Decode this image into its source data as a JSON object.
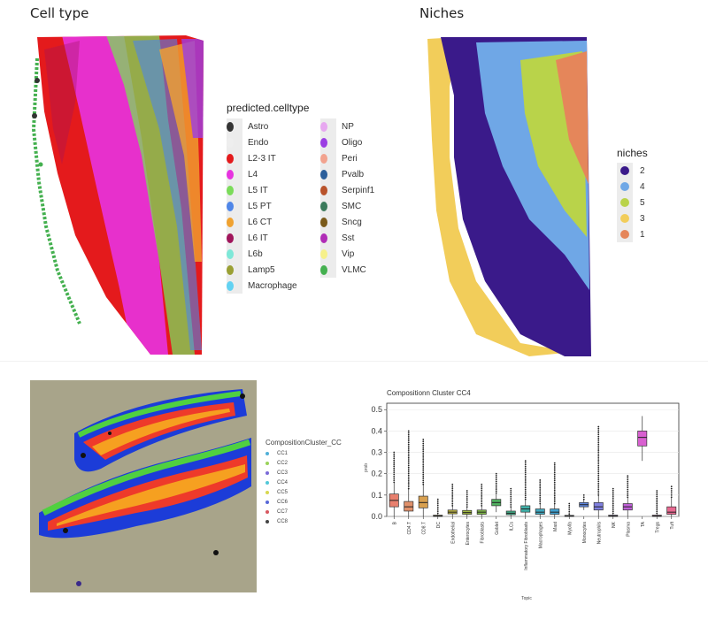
{
  "panels": {
    "cell_type": {
      "title": "Cell type"
    },
    "niches": {
      "title": "Niches"
    }
  },
  "celltype_legend": {
    "title": "predicted.celltype",
    "col1": [
      {
        "label": "Astro",
        "color": "#333333"
      },
      {
        "label": "Endo",
        "color": "#eeeeee"
      },
      {
        "label": "L2-3 IT",
        "color": "#e41a1c"
      },
      {
        "label": "L4",
        "color": "#e733e0"
      },
      {
        "label": "L5 IT",
        "color": "#7bdc5a"
      },
      {
        "label": "L5 PT",
        "color": "#4f86e8"
      },
      {
        "label": "L6 CT",
        "color": "#f0a230"
      },
      {
        "label": "L6 IT",
        "color": "#a0155b"
      },
      {
        "label": "L6b",
        "color": "#7ee8d8"
      },
      {
        "label": "Lamp5",
        "color": "#9aa034"
      },
      {
        "label": "Macrophage",
        "color": "#62d2f2"
      }
    ],
    "col2": [
      {
        "label": "NP",
        "color": "#e7a8f0"
      },
      {
        "label": "Oligo",
        "color": "#9b3ee3"
      },
      {
        "label": "Peri",
        "color": "#f2a28e"
      },
      {
        "label": "Pvalb",
        "color": "#2b5e9a"
      },
      {
        "label": "Serpinf1",
        "color": "#b8522a"
      },
      {
        "label": "SMC",
        "color": "#3b7a5b"
      },
      {
        "label": "Sncg",
        "color": "#7a5a1a"
      },
      {
        "label": "Sst",
        "color": "#b02cb6"
      },
      {
        "label": "Vip",
        "color": "#f6f08a"
      },
      {
        "label": "VLMC",
        "color": "#44b04f"
      }
    ]
  },
  "niche_legend": {
    "title": "niches",
    "items": [
      {
        "label": "2",
        "color": "#3a1a8a"
      },
      {
        "label": "4",
        "color": "#6fa7e6"
      },
      {
        "label": "5",
        "color": "#b9d34a"
      },
      {
        "label": "3",
        "color": "#f2cd5a"
      },
      {
        "label": "1",
        "color": "#e5865a"
      }
    ]
  },
  "cc_legend": {
    "title": "CompositionCluster_CC",
    "items": [
      {
        "label": "CC1",
        "color": "#50b0d8"
      },
      {
        "label": "CC2",
        "color": "#9ad35a"
      },
      {
        "label": "CC3",
        "color": "#7a6ad8"
      },
      {
        "label": "CC4",
        "color": "#52c8d8"
      },
      {
        "label": "CC5",
        "color": "#d8d850"
      },
      {
        "label": "CC6",
        "color": "#5868d8"
      },
      {
        "label": "CC7",
        "color": "#d85860"
      },
      {
        "label": "CC8",
        "color": "#444444"
      }
    ]
  },
  "chart_data": {
    "type": "box",
    "title": "Compositionn Cluster CC4",
    "xlabel": "Topic",
    "ylabel": "prob",
    "ylim": [
      0,
      0.53
    ],
    "yticks": [
      0.0,
      0.1,
      0.2,
      0.3,
      0.4,
      0.5
    ],
    "categories": [
      {
        "name": "B",
        "color": "#e8806e",
        "q1": 0.045,
        "median": 0.075,
        "q3": 0.105,
        "lo": 0.0,
        "hi": 0.16,
        "out_hi": 0.3
      },
      {
        "name": "CD4.T",
        "color": "#e0906a",
        "q1": 0.025,
        "median": 0.045,
        "q3": 0.07,
        "lo": 0.0,
        "hi": 0.13,
        "out_hi": 0.4
      },
      {
        "name": "CD8.T",
        "color": "#d8a050",
        "q1": 0.04,
        "median": 0.065,
        "q3": 0.095,
        "lo": 0.0,
        "hi": 0.15,
        "out_hi": 0.36
      },
      {
        "name": "DC",
        "color": "#c8a840",
        "q1": 0.0,
        "median": 0.002,
        "q3": 0.006,
        "lo": 0.0,
        "hi": 0.015,
        "out_hi": 0.08
      },
      {
        "name": "Endothelial",
        "color": "#b8b040",
        "q1": 0.012,
        "median": 0.02,
        "q3": 0.03,
        "lo": 0.0,
        "hi": 0.05,
        "out_hi": 0.15
      },
      {
        "name": "Enterocytes",
        "color": "#a0b840",
        "q1": 0.01,
        "median": 0.018,
        "q3": 0.028,
        "lo": 0.0,
        "hi": 0.045,
        "out_hi": 0.12
      },
      {
        "name": "Fibroblasts",
        "color": "#80b848",
        "q1": 0.01,
        "median": 0.02,
        "q3": 0.03,
        "lo": 0.0,
        "hi": 0.05,
        "out_hi": 0.15
      },
      {
        "name": "Goblet",
        "color": "#50b060",
        "q1": 0.05,
        "median": 0.065,
        "q3": 0.08,
        "lo": 0.02,
        "hi": 0.11,
        "out_hi": 0.2
      },
      {
        "name": "ILCs",
        "color": "#40b088",
        "q1": 0.008,
        "median": 0.015,
        "q3": 0.025,
        "lo": 0.0,
        "hi": 0.045,
        "out_hi": 0.13
      },
      {
        "name": "Inflammatory Fibroblasts",
        "color": "#40b0a8",
        "q1": 0.02,
        "median": 0.035,
        "q3": 0.05,
        "lo": 0.0,
        "hi": 0.08,
        "out_hi": 0.26
      },
      {
        "name": "Macrophages",
        "color": "#40a8c0",
        "q1": 0.01,
        "median": 0.02,
        "q3": 0.035,
        "lo": 0.0,
        "hi": 0.06,
        "out_hi": 0.17
      },
      {
        "name": "Mast",
        "color": "#40a0d0",
        "q1": 0.01,
        "median": 0.02,
        "q3": 0.035,
        "lo": 0.0,
        "hi": 0.06,
        "out_hi": 0.25
      },
      {
        "name": "Myofib",
        "color": "#5090d8",
        "q1": 0.0,
        "median": 0.002,
        "q3": 0.005,
        "lo": 0.0,
        "hi": 0.012,
        "out_hi": 0.06
      },
      {
        "name": "Monocytes",
        "color": "#6088e0",
        "q1": 0.045,
        "median": 0.055,
        "q3": 0.065,
        "lo": 0.03,
        "hi": 0.08,
        "out_hi": 0.1
      },
      {
        "name": "Neutrophils",
        "color": "#8080e0",
        "q1": 0.03,
        "median": 0.045,
        "q3": 0.065,
        "lo": 0.0,
        "hi": 0.1,
        "out_hi": 0.42
      },
      {
        "name": "NK",
        "color": "#a070e0",
        "q1": 0.0,
        "median": 0.002,
        "q3": 0.006,
        "lo": 0.0,
        "hi": 0.015,
        "out_hi": 0.13
      },
      {
        "name": "Plasma",
        "color": "#c060d8",
        "q1": 0.03,
        "median": 0.045,
        "q3": 0.06,
        "lo": 0.0,
        "hi": 0.09,
        "out_hi": 0.19
      },
      {
        "name": "TA",
        "color": "#d860d0",
        "q1": 0.33,
        "median": 0.37,
        "q3": 0.4,
        "lo": 0.26,
        "hi": 0.47,
        "out_hi": null
      },
      {
        "name": "Tregs",
        "color": "#e060b0",
        "q1": 0.0,
        "median": 0.002,
        "q3": 0.006,
        "lo": 0.0,
        "hi": 0.015,
        "out_hi": 0.12
      },
      {
        "name": "Tuft",
        "color": "#e86890",
        "q1": 0.01,
        "median": 0.02,
        "q3": 0.045,
        "lo": 0.0,
        "hi": 0.09,
        "out_hi": 0.14
      }
    ]
  }
}
